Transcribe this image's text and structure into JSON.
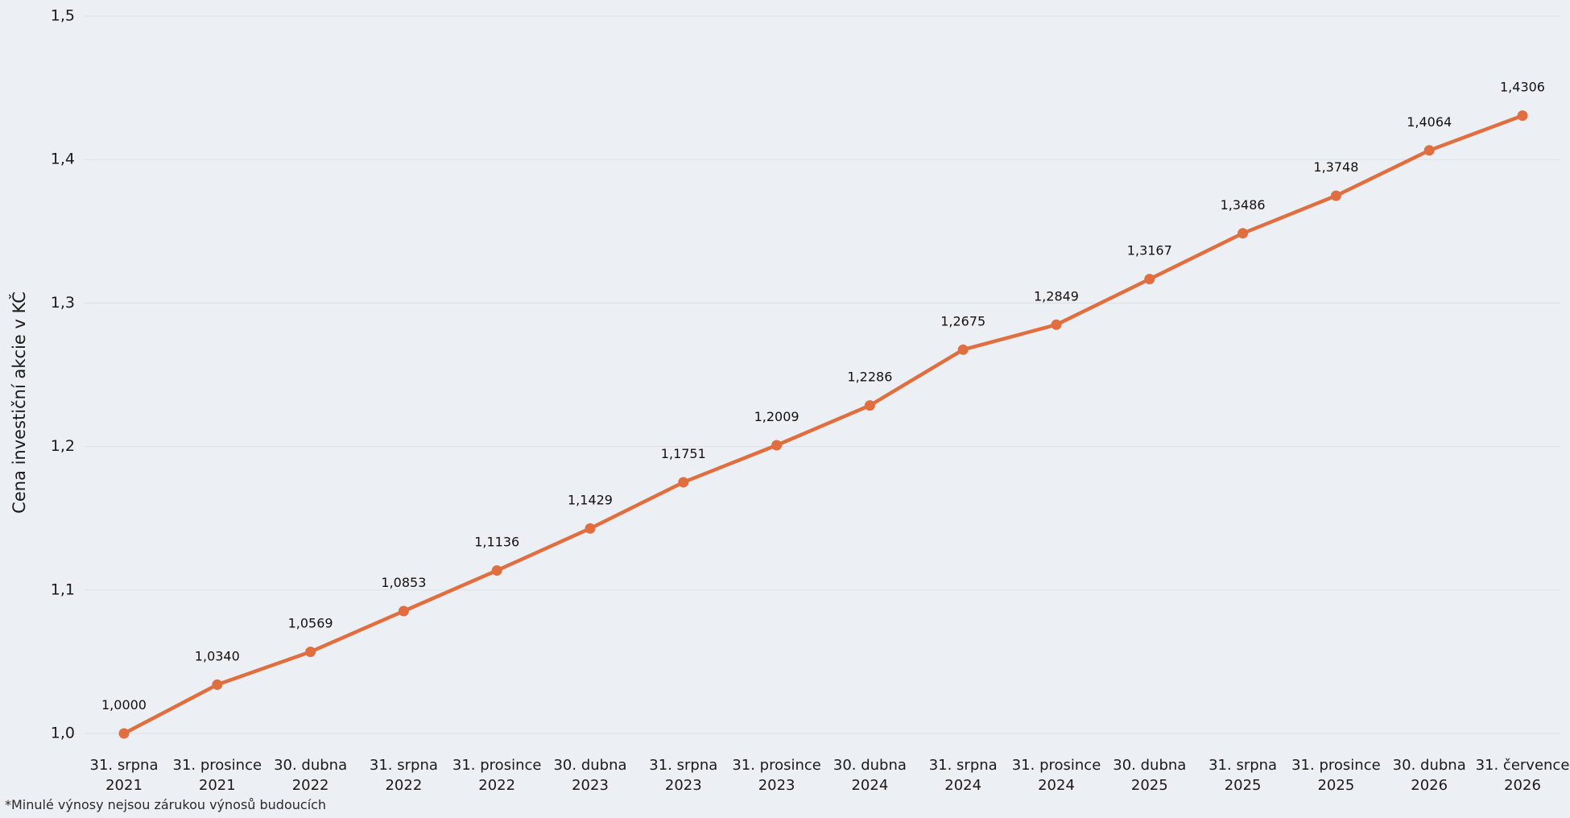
{
  "chart_data": {
    "type": "line",
    "ylabel": "Cena investiční akcie v KČ",
    "xlabel": "",
    "ylim": [
      1.0,
      1.5
    ],
    "yticks": [
      "1,0",
      "1,1",
      "1,2",
      "1,3",
      "1,4",
      "1,5"
    ],
    "ytick_values": [
      1.0,
      1.1,
      1.2,
      1.3,
      1.4,
      1.5
    ],
    "grid": true,
    "legend": "none",
    "color": "#e06e3f",
    "categories": [
      [
        "31. srpna",
        "2021"
      ],
      [
        "31. prosince",
        "2021"
      ],
      [
        "30. dubna",
        "2022"
      ],
      [
        "31. srpna",
        "2022"
      ],
      [
        "31. prosince",
        "2022"
      ],
      [
        "30. dubna",
        "2023"
      ],
      [
        "31. srpna",
        "2023"
      ],
      [
        "31. prosince",
        "2023"
      ],
      [
        "30. dubna",
        "2024"
      ],
      [
        "31. srpna",
        "2024"
      ],
      [
        "31. prosince",
        "2024"
      ],
      [
        "30. dubna",
        "2025"
      ],
      [
        "31. srpna",
        "2025"
      ],
      [
        "31. prosince",
        "2025"
      ],
      [
        "30. dubna",
        "2026"
      ],
      [
        "31. července",
        "2026"
      ]
    ],
    "values": [
      1.0,
      1.034,
      1.0569,
      1.0853,
      1.1136,
      1.1429,
      1.1751,
      1.2009,
      1.2286,
      1.2675,
      1.2849,
      1.3167,
      1.3486,
      1.3748,
      1.4064,
      1.4306
    ],
    "value_labels": [
      "1,0000",
      "1,0340",
      "1,0569",
      "1,0853",
      "1,1136",
      "1,1429",
      "1,1751",
      "1,2009",
      "1,2286",
      "1,2675",
      "1,2849",
      "1,3167",
      "1,3486",
      "1,3748",
      "1,4064",
      "1,4306"
    ]
  },
  "footnote": "*Minulé výnosy nejsou zárukou výnosů budoucích"
}
